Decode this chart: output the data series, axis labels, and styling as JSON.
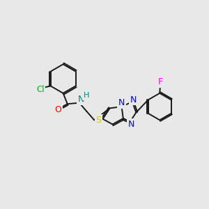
{
  "background_color": "#e8e8e8",
  "bond_color": "#1a1a1a",
  "atom_colors": {
    "Cl": "#00bb00",
    "O": "#ff0000",
    "N": "#0000ee",
    "NH": "#008080",
    "H": "#008080",
    "S": "#cccc00",
    "F": "#ff00ff",
    "C": "#1a1a1a"
  },
  "figsize": [
    3.0,
    3.0
  ],
  "dpi": 100
}
